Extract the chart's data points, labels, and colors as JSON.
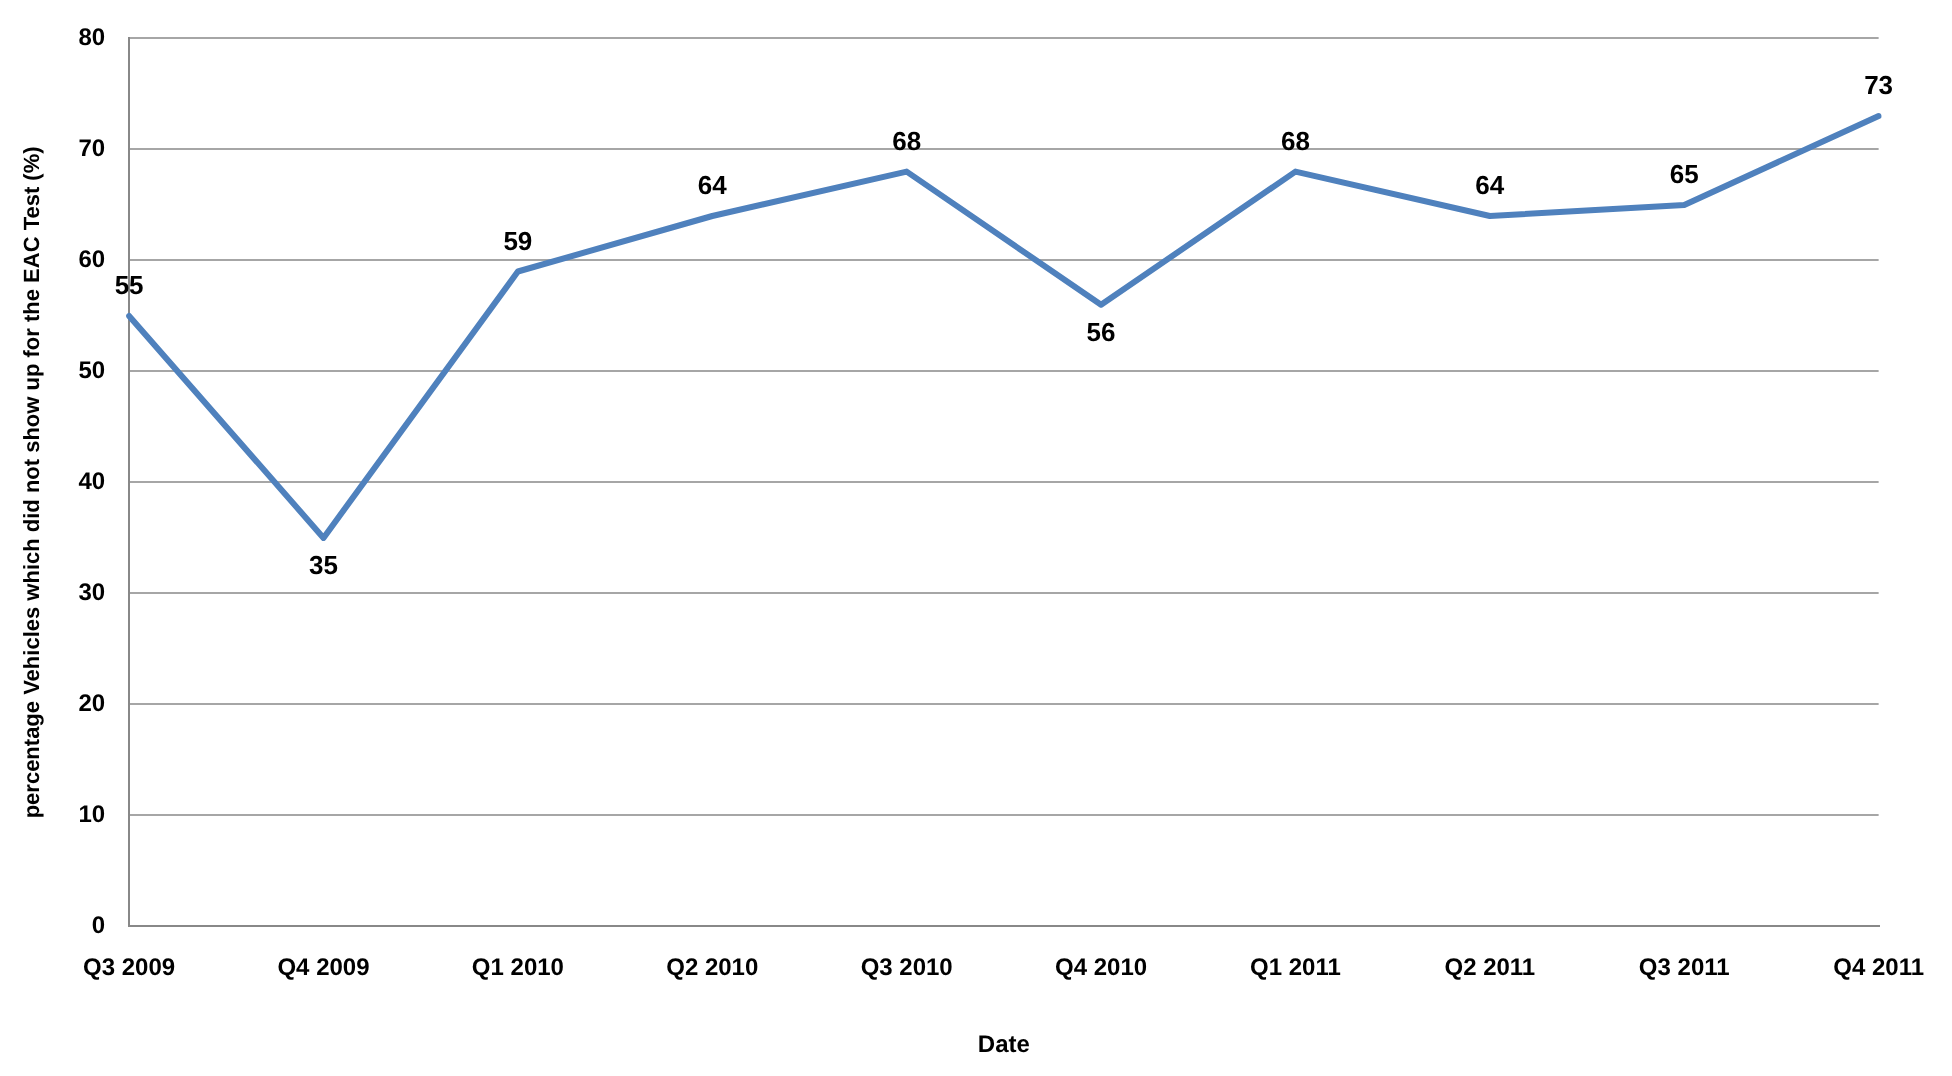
{
  "chart_data": {
    "type": "line",
    "xlabel": "Date",
    "ylabel": "percentage Vehicles which did not show up for the EAC Test (%)",
    "categories": [
      "Q3 2009",
      "Q4 2009",
      "Q1 2010",
      "Q2 2010",
      "Q3 2010",
      "Q4 2010",
      "Q1 2011",
      "Q2 2011",
      "Q3 2011",
      "Q4 2011"
    ],
    "series": [
      {
        "color": "#4f81bd",
        "values": [
          55,
          35,
          59,
          64,
          68,
          56,
          68,
          64,
          65,
          73
        ]
      }
    ],
    "ylim": [
      0,
      80
    ],
    "yticks": [
      0,
      10,
      20,
      30,
      40,
      50,
      60,
      70,
      80
    ],
    "grid": "y",
    "legend": false,
    "marker": "none",
    "line_style": "solid",
    "data_labels": true
  }
}
